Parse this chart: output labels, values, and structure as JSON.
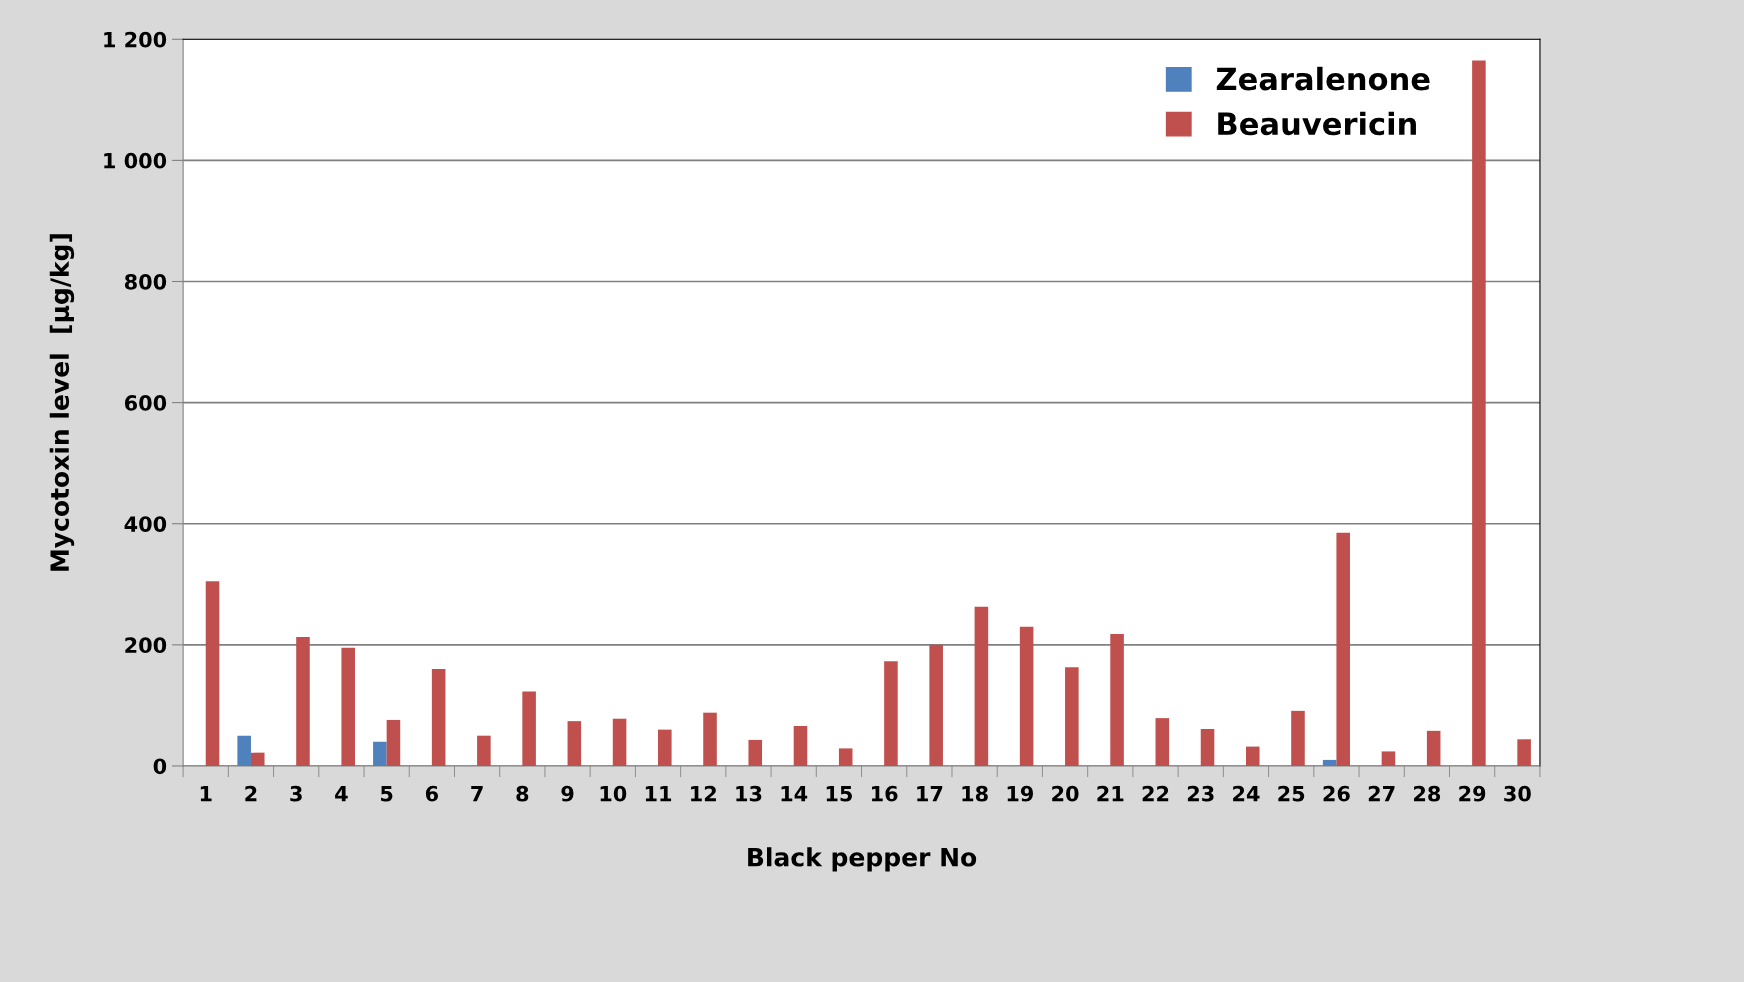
{
  "chart_data": {
    "type": "bar",
    "xlabel": "Black pepper No",
    "ylabel": "Mycotoxin level  [µg/kg]",
    "categories": [
      "1",
      "2",
      "3",
      "4",
      "5",
      "6",
      "7",
      "8",
      "9",
      "10",
      "11",
      "12",
      "13",
      "14",
      "15",
      "16",
      "17",
      "18",
      "19",
      "20",
      "21",
      "22",
      "23",
      "24",
      "25",
      "26",
      "27",
      "28",
      "29",
      "30"
    ],
    "series": [
      {
        "name": "Zearalenone",
        "color": "#4f81bd",
        "values": [
          null,
          50,
          null,
          null,
          40,
          null,
          null,
          null,
          null,
          null,
          null,
          null,
          null,
          null,
          null,
          null,
          null,
          null,
          null,
          null,
          null,
          null,
          null,
          null,
          null,
          10,
          null,
          null,
          null,
          null
        ]
      },
      {
        "name": "Beauvericin",
        "color": "#c0504d",
        "values": [
          305,
          22,
          213,
          195,
          76,
          160,
          50,
          123,
          74,
          78,
          60,
          88,
          43,
          66,
          29,
          173,
          200,
          263,
          230,
          163,
          218,
          79,
          61,
          32,
          91,
          385,
          24,
          58,
          1165,
          44
        ]
      }
    ],
    "ylim": [
      0,
      1200
    ],
    "yticks": [
      0,
      200,
      400,
      600,
      800,
      {
        "value": 1000,
        "label": "1 000"
      },
      {
        "value": 1200,
        "label": "1 200"
      }
    ],
    "grid": "y",
    "legend": "top right"
  }
}
